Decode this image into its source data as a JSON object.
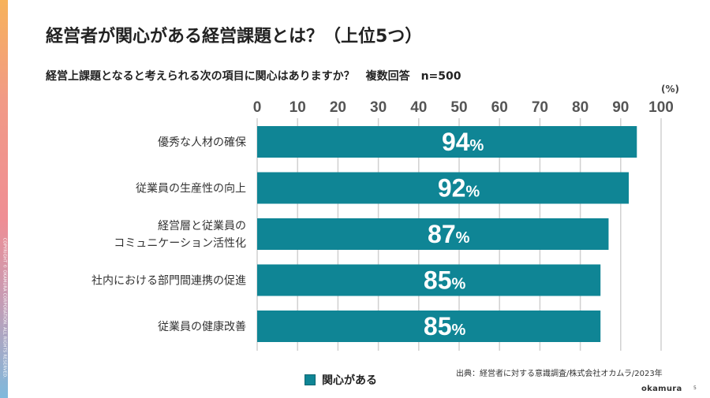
{
  "title": "経営者が関心がある経営課題とは？（上位5つ）",
  "subtitle": "経営上課題となると考えられる次の項目に関心はありますか？　複数回答　n=500",
  "copyright": "COPYRIGHT © OKAMURA CORPORATION. ALL RIGHTS RESERVED.",
  "source": "出典：経営者に対する意識調査/株式会社オカムラ/2023年",
  "logo": "okamura",
  "page_number": "5",
  "colors": {
    "bar": "#0f8595",
    "grid": "#d0d0d0"
  },
  "chart_data": {
    "type": "bar",
    "orientation": "horizontal",
    "categories": [
      [
        "優秀な人材の確保"
      ],
      [
        "従業員の生産性の向上"
      ],
      [
        "経営層と従業員の",
        "コミュニケーション活性化"
      ],
      [
        "社内における部門間連携の促進"
      ],
      [
        "従業員の健康改善"
      ]
    ],
    "series": [
      {
        "name": "関心がある",
        "values": [
          94,
          92,
          87,
          85,
          85
        ]
      }
    ],
    "xlim": [
      0,
      100
    ],
    "xticks": [
      0,
      10,
      20,
      30,
      40,
      50,
      60,
      70,
      80,
      90,
      100
    ],
    "unit_label": "(%)",
    "value_suffix": "%",
    "legend": "bottom"
  }
}
